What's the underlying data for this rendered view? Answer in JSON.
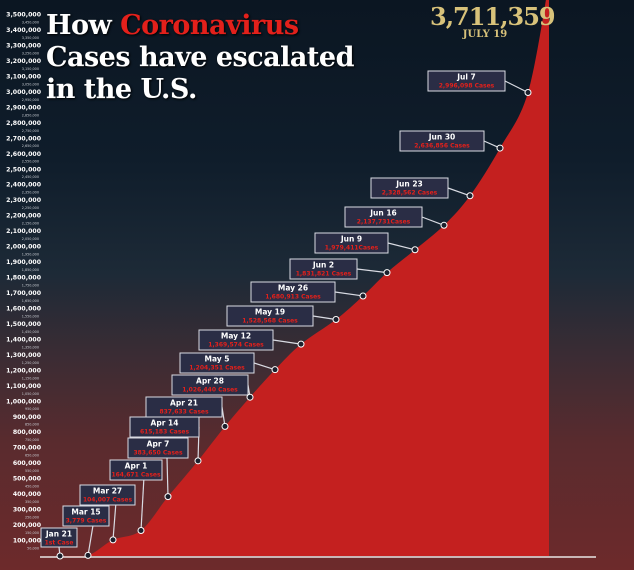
{
  "title": {
    "line1_prefix": "How ",
    "line1_highlight": "Coronavirus",
    "line2": "Cases have escalated",
    "line3": "in the U.S."
  },
  "latest": {
    "value": "3,711,359",
    "date": "JULY 19"
  },
  "colors": {
    "area_fill": "#c4201f",
    "highlight": "#e3201b",
    "gold": "#d8c27a",
    "callout_bg": "#2a2d45",
    "callout_border": "#d9dbe3"
  },
  "chart_data": {
    "type": "area",
    "title": "How Coronavirus Cases have escalated in the U.S.",
    "xlabel": "",
    "ylabel": "",
    "ylim": [
      0,
      3500000
    ],
    "grid": false,
    "legend": "none",
    "y_major_ticks": [
      "100,000",
      "200,000",
      "300,000",
      "400,000",
      "500,000",
      "600,000",
      "700,000",
      "800,000",
      "900,000",
      "1,000,000",
      "1,100,000",
      "1,200,000",
      "1,300,000",
      "1,400,000",
      "1,500,000",
      "1,600,000",
      "1,700,000",
      "1,800,000",
      "1,900,000",
      "2,000,000",
      "2,100,000",
      "2,200,000",
      "2,300,000",
      "2,400,000",
      "2,500,000",
      "2,600,000",
      "2,700,000",
      "2,800,000",
      "2,900,000",
      "3,000,000",
      "3,100,000",
      "3,200,000",
      "3,300,000",
      "3,400,000",
      "3,500,000"
    ],
    "y_minor_ticks": [
      "50,000",
      "150,000",
      "250,000",
      "350,000",
      "450,000",
      "550,000",
      "650,000",
      "750,000",
      "850,000",
      "950,000",
      "1,050,000",
      "1,150,000",
      "1,250,000",
      "1,350,000",
      "1,450,000",
      "1,550,000",
      "1,650,000",
      "1,750,000",
      "1,850,000",
      "1,950,000",
      "2,050,000",
      "2,150,000",
      "2,250,000",
      "2,350,000",
      "2,450,000",
      "2,550,000",
      "2,650,000",
      "2,750,000",
      "2,850,000",
      "2,950,000",
      "3,050,000",
      "3,150,000",
      "3,250,000",
      "3,350,000",
      "3,450,000"
    ],
    "points": [
      {
        "date": "Jan 21",
        "day": 0,
        "cases": 1,
        "label": "1st Case"
      },
      {
        "date": "Mar 15",
        "day": 54,
        "cases": 3779,
        "label": "3,779 Cases"
      },
      {
        "date": "Mar 27",
        "day": 66,
        "cases": 104007,
        "label": "104,007 Cases"
      },
      {
        "date": "Apr 1",
        "day": 71,
        "cases": 164671,
        "label": "164,671 Cases"
      },
      {
        "date": "Apr 7",
        "day": 77,
        "cases": 383650,
        "label": "383,650 Cases"
      },
      {
        "date": "Apr 14",
        "day": 84,
        "cases": 615183,
        "label": "615,183 Cases"
      },
      {
        "date": "Apr 21",
        "day": 91,
        "cases": 837633,
        "label": "837,633 Cases"
      },
      {
        "date": "Apr 28",
        "day": 98,
        "cases": 1026440,
        "label": "1,026,440 Cases"
      },
      {
        "date": "May 5",
        "day": 105,
        "cases": 1204351,
        "label": "1,204,351 Cases"
      },
      {
        "date": "May 12",
        "day": 112,
        "cases": 1369574,
        "label": "1,369,574 Cases"
      },
      {
        "date": "May 19",
        "day": 119,
        "cases": 1528568,
        "label": "1,528,568 Cases"
      },
      {
        "date": "May 26",
        "day": 126,
        "cases": 1680913,
        "label": "1,680,913 Cases"
      },
      {
        "date": "Jun 2",
        "day": 133,
        "cases": 1831821,
        "label": "1,831,821 Cases"
      },
      {
        "date": "Jun 9",
        "day": 140,
        "cases": 1979411,
        "label": "1,979,411Cases"
      },
      {
        "date": "Jun 16",
        "day": 147,
        "cases": 2137731,
        "label": "2,137,731Cases"
      },
      {
        "date": "Jun 23",
        "day": 154,
        "cases": 2328562,
        "label": "2,328,562 Cases"
      },
      {
        "date": "Jun 30",
        "day": 161,
        "cases": 2636856,
        "label": "2,636,856 Cases"
      },
      {
        "date": "Jul 7",
        "day": 168,
        "cases": 2996098,
        "label": "2,996,098 Cases"
      },
      {
        "date": "Jul 19",
        "day": 180,
        "cases": 3711359,
        "label": "3,711,359"
      }
    ]
  }
}
